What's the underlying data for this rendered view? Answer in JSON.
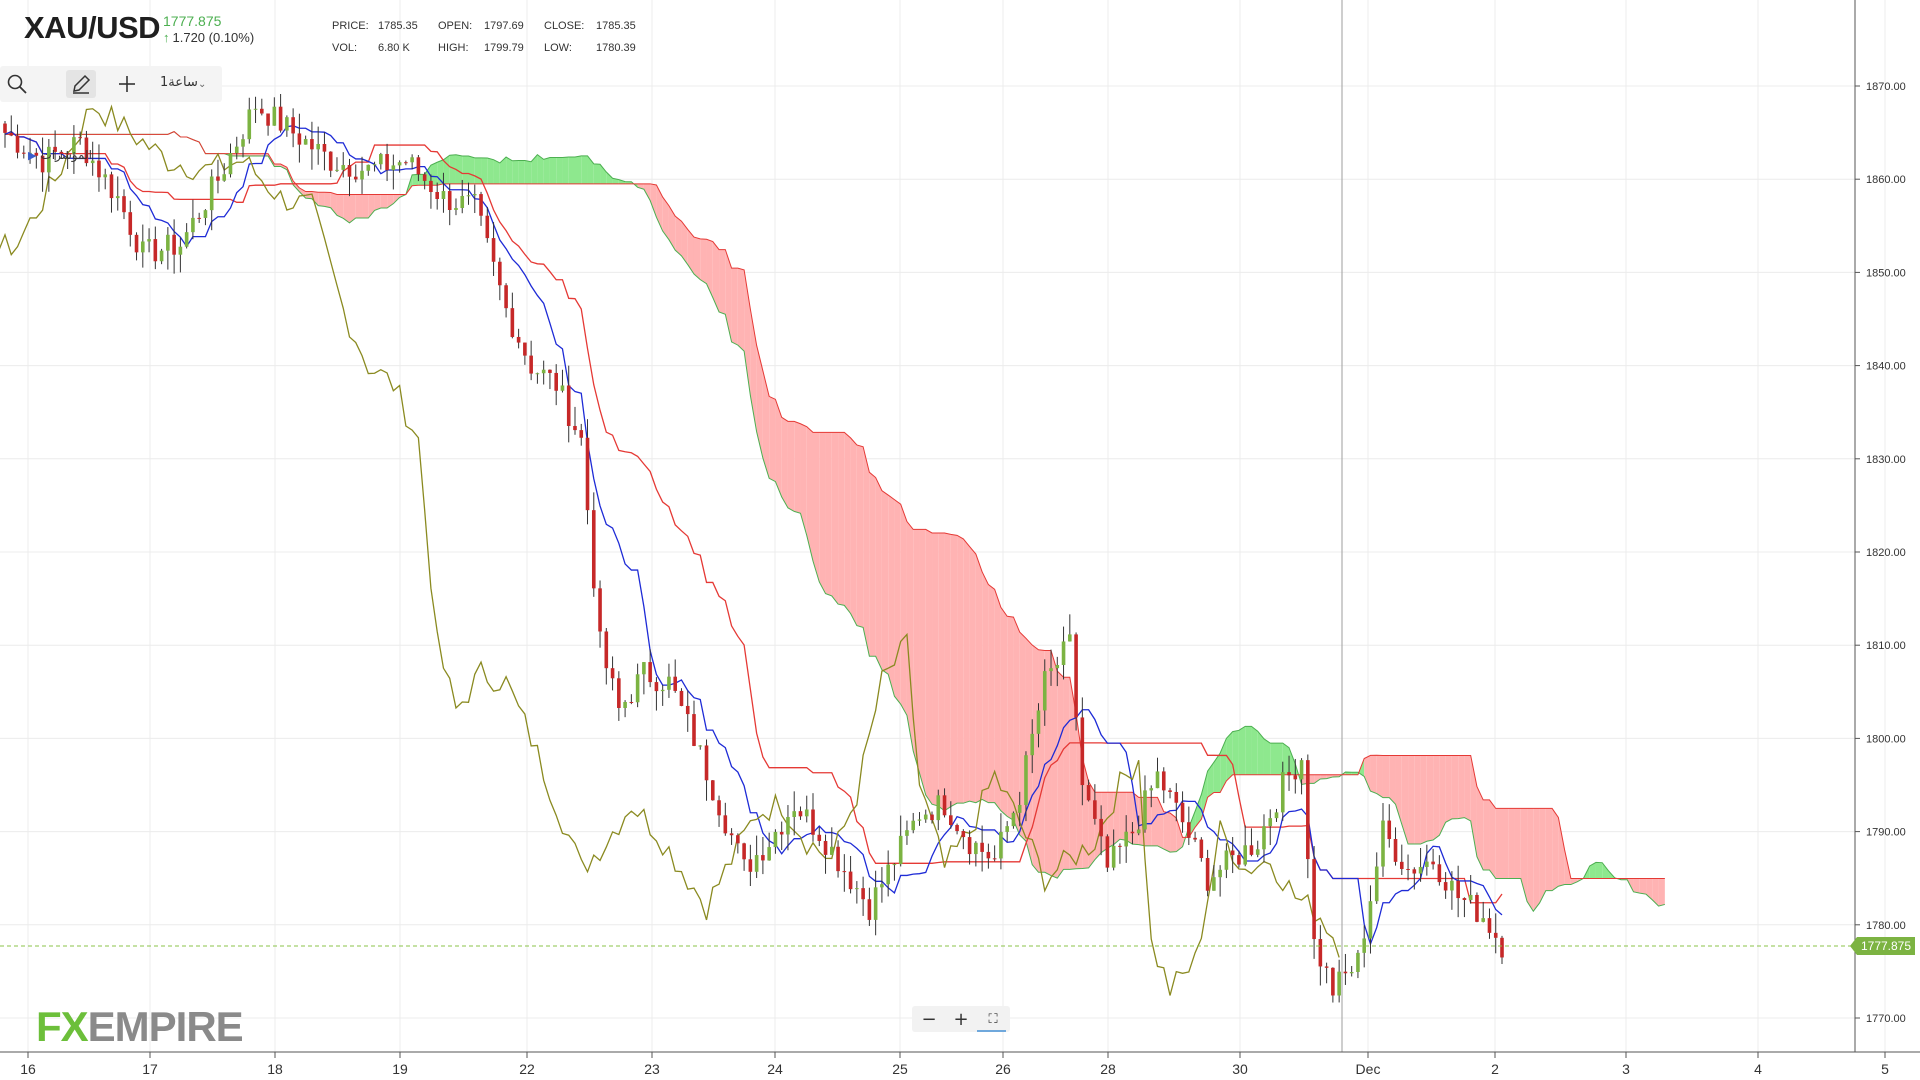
{
  "header": {
    "symbol": "XAU/USD",
    "last_price": "1777.875",
    "change": "1.720 (0.10%)",
    "change_direction": "up",
    "stats": [
      {
        "label": "PRICE:",
        "value": "1785.35"
      },
      {
        "label": "OPEN:",
        "value": "1797.69"
      },
      {
        "label": "CLOSE:",
        "value": "1785.35"
      },
      {
        "label": "VOL:",
        "value": "6.80 K"
      },
      {
        "label": "HIGH:",
        "value": "1799.79"
      },
      {
        "label": "LOW:",
        "value": "1780.39"
      }
    ]
  },
  "toolbar": {
    "search_icon": "search-icon",
    "draw_icon": "pencil-icon",
    "add_icon": "plus-icon",
    "timeframe": "ساعة1"
  },
  "indicators_label": "المؤشرات",
  "logo": {
    "fx": "FX",
    "empire": "EMPIRE"
  },
  "zoom": {
    "minus": "−",
    "plus": "+",
    "fullscreen": "⛶"
  },
  "colors": {
    "up": "#7cb342",
    "down": "#c62828",
    "kijun": "#e53935",
    "tenkan": "#1e2bd6",
    "chikou": "#8a8a20",
    "cloud_bull": "#8ee88e",
    "cloud_bear": "#ffb3b3",
    "price_line": "#8bc34a"
  },
  "chart_data": {
    "type": "candlestick",
    "indicator": "Ichimoku",
    "timeframe": "1H",
    "x_tick_labels": [
      "16",
      "17",
      "18",
      "19",
      "22",
      "23",
      "24",
      "25",
      "26",
      "28",
      "30",
      "Dec",
      "2",
      "3",
      "4",
      "5"
    ],
    "y_tick_labels": [
      "1870.00",
      "1860.00",
      "1850.00",
      "1840.00",
      "1830.00",
      "1820.00",
      "1810.00",
      "1800.00",
      "1790.00",
      "1780.00",
      "1770.00"
    ],
    "ylim": [
      1767,
      1880
    ],
    "current_price": 1777.875,
    "grid": true,
    "price_path": [
      [
        0,
        1865
      ],
      [
        6,
        1862
      ],
      [
        12,
        1864
      ],
      [
        18,
        1858
      ],
      [
        22,
        1852
      ],
      [
        28,
        1853
      ],
      [
        34,
        1860
      ],
      [
        40,
        1868
      ],
      [
        46,
        1865
      ],
      [
        52,
        1862
      ],
      [
        58,
        1861
      ],
      [
        64,
        1862
      ],
      [
        70,
        1858
      ],
      [
        75,
        1857
      ],
      [
        80,
        1846
      ],
      [
        84,
        1840
      ],
      [
        88,
        1838
      ],
      [
        92,
        1832
      ],
      [
        95,
        1810
      ],
      [
        98,
        1803
      ],
      [
        102,
        1807
      ],
      [
        106,
        1806
      ],
      [
        110,
        1800
      ],
      [
        114,
        1793
      ],
      [
        118,
        1786
      ],
      [
        122,
        1789
      ],
      [
        126,
        1793
      ],
      [
        130,
        1790
      ],
      [
        134,
        1786
      ],
      [
        138,
        1782
      ],
      [
        142,
        1787
      ],
      [
        146,
        1792
      ],
      [
        150,
        1793
      ],
      [
        154,
        1789
      ],
      [
        158,
        1787
      ],
      [
        162,
        1794
      ],
      [
        166,
        1806
      ],
      [
        170,
        1810
      ],
      [
        172,
        1795
      ],
      [
        176,
        1786
      ],
      [
        180,
        1790
      ],
      [
        184,
        1796
      ],
      [
        188,
        1791
      ],
      [
        192,
        1785
      ],
      [
        196,
        1787
      ],
      [
        200,
        1789
      ],
      [
        204,
        1795
      ],
      [
        207,
        1798
      ],
      [
        209,
        1778
      ],
      [
        212,
        1773
      ],
      [
        216,
        1776
      ],
      [
        220,
        1790
      ],
      [
        224,
        1786
      ],
      [
        228,
        1787
      ],
      [
        232,
        1783
      ],
      [
        236,
        1781
      ],
      [
        239,
        1777.9
      ]
    ],
    "candle_count": 240
  }
}
